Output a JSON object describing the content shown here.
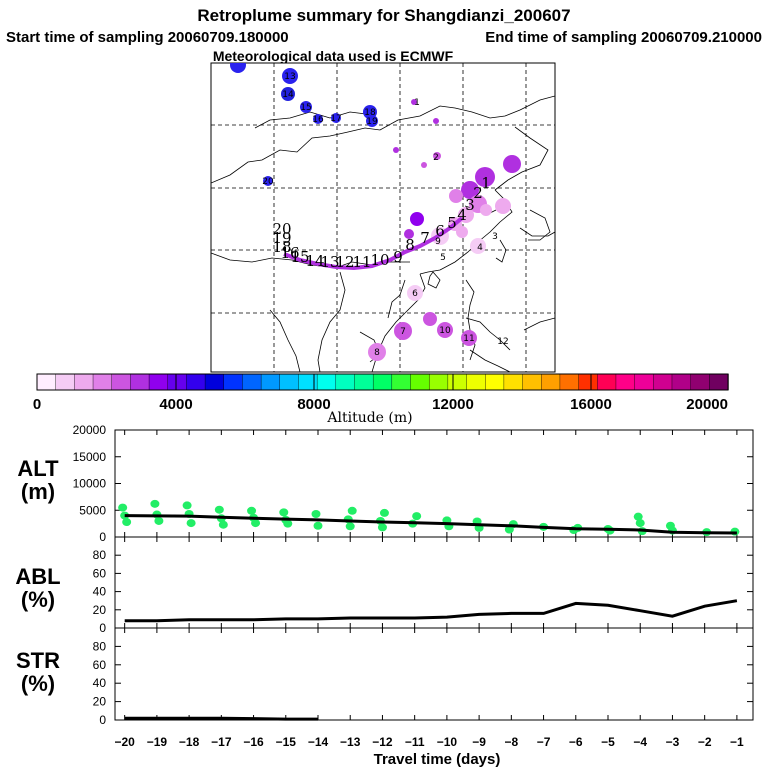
{
  "title": "Retroplume summary for Shangdianzi_200607",
  "start_label": "Start time of sampling 20060709.180000",
  "end_label": "End time of sampling 20060709.210000",
  "met_label": "Meteorological data used is ECMWF",
  "colorbar": {
    "title": "Altitude (m)",
    "ticks": [
      "0",
      "4000",
      "8000",
      "12000",
      "16000",
      "20000"
    ],
    "colors": [
      "#ffeeff",
      "#f5ccf5",
      "#eeaaee",
      "#e080e8",
      "#cc55e0",
      "#b030e0",
      "#9000ee",
      "#6600ee",
      "#3300ee",
      "#0000dd",
      "#0033ff",
      "#0066ff",
      "#0099ff",
      "#00c0ff",
      "#00e0ff",
      "#00ffee",
      "#00ffc0",
      "#00ff99",
      "#00ff66",
      "#33ff33",
      "#66ff00",
      "#99ff00",
      "#ccff00",
      "#eeff00",
      "#ffff00",
      "#ffe000",
      "#ffc000",
      "#ffa000",
      "#ff7000",
      "#ff3000",
      "#ff0055",
      "#ff0088",
      "#ee0099",
      "#d00090",
      "#b00088",
      "#900070",
      "#700060"
    ]
  },
  "map": {
    "trajectory_labels": [
      "20",
      "19",
      "18",
      "16",
      "15",
      "14",
      "13",
      "12",
      "11",
      "10",
      "9",
      "8",
      "7",
      "6",
      "5",
      "4",
      "3",
      "2",
      "1"
    ],
    "day_markers": [
      "1",
      "2",
      "3",
      "4",
      "5",
      "6",
      "7",
      "8",
      "9",
      "10",
      "11",
      "12",
      "13",
      "14",
      "15",
      "16",
      "17",
      "18",
      "19",
      "20"
    ]
  },
  "chart_data": [
    {
      "type": "scatter",
      "panel": "ALT",
      "ylabel": "ALT",
      "yunit": "(m)",
      "ylim": [
        0,
        20000
      ],
      "yticks": [
        "20000",
        "15000",
        "10000",
        "5000",
        "0"
      ],
      "xlim": [
        -20.3,
        -0.5
      ],
      "mean_line": {
        "x": [
          -20,
          -19,
          -18,
          -17,
          -16,
          -15,
          -14,
          -13,
          -12,
          -11,
          -10,
          -9,
          -8,
          -7,
          -6,
          -5,
          -4,
          -3,
          -2,
          -1
        ],
        "y": [
          4000,
          3950,
          3900,
          3700,
          3500,
          3350,
          3200,
          3000,
          2800,
          2650,
          2500,
          2300,
          2100,
          1800,
          1550,
          1450,
          1300,
          900,
          800,
          750
        ]
      },
      "points": {
        "x": [
          -20,
          -20,
          -20,
          -19,
          -19,
          -19,
          -18,
          -18,
          -18,
          -17,
          -17,
          -17,
          -16,
          -16,
          -16,
          -15,
          -15,
          -15,
          -14,
          -14,
          -13,
          -13,
          -13,
          -12,
          -12,
          -12,
          -11,
          -11,
          -10,
          -10,
          -9,
          -9,
          -8,
          -8,
          -7,
          -6,
          -6,
          -5,
          -5,
          -4,
          -4,
          -4,
          -3,
          -3,
          -2,
          -1
        ],
        "y": [
          5500,
          4000,
          2800,
          6200,
          4200,
          3000,
          5900,
          4300,
          2600,
          5100,
          3500,
          2300,
          4900,
          3600,
          2600,
          4600,
          3200,
          2500,
          4300,
          2100,
          4900,
          3300,
          2000,
          4500,
          3000,
          1800,
          3900,
          2500,
          3100,
          2000,
          2900,
          1700,
          2400,
          1400,
          1900,
          1700,
          1300,
          1500,
          1200,
          3800,
          2600,
          1100,
          2100,
          1200,
          900,
          1000
        ]
      }
    },
    {
      "type": "line",
      "panel": "ABL",
      "ylabel": "ABL",
      "yunit": "(%)",
      "ylim": [
        0,
        100
      ],
      "yticks": [
        "80",
        "60",
        "40",
        "20",
        "0"
      ],
      "xlim": [
        -20.3,
        -0.5
      ],
      "x": [
        -20,
        -19,
        -18,
        -17,
        -16,
        -15,
        -14,
        -13,
        -12,
        -11,
        -10,
        -9,
        -8,
        -7,
        -6,
        -5,
        -4,
        -3,
        -2,
        -1
      ],
      "y": [
        8,
        8,
        9,
        9,
        9,
        10,
        10,
        11,
        11,
        11,
        12,
        15,
        16,
        16,
        27,
        25,
        19,
        13,
        24,
        30
      ]
    },
    {
      "type": "line",
      "panel": "STR",
      "ylabel": "STR",
      "yunit": "(%)",
      "ylim": [
        0,
        100
      ],
      "yticks": [
        "80",
        "60",
        "40",
        "20",
        "0"
      ],
      "xlim": [
        -20.3,
        -0.5
      ],
      "x": [
        -20,
        -19,
        -18,
        -17,
        -16,
        -15,
        -14
      ],
      "y": [
        2,
        2,
        2,
        2,
        1.5,
        1,
        1
      ]
    }
  ],
  "xaxis": {
    "ticks": [
      "−20",
      "−19",
      "−18",
      "−17",
      "−16",
      "−15",
      "−14",
      "−13",
      "−12",
      "−11",
      "−10",
      "−9",
      "−8",
      "−7",
      "−6",
      "−5",
      "−4",
      "−3",
      "−2",
      "−1"
    ],
    "label": "Travel time (days)"
  }
}
